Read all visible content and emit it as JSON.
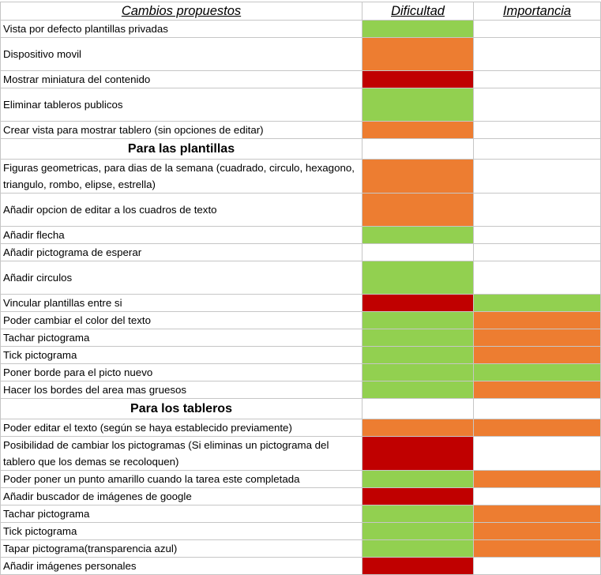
{
  "header": {
    "col1": "Cambios propuestos",
    "col2": "Dificultad",
    "col3": "Importancia"
  },
  "colors": {
    "green": "#92d050",
    "orange": "#ed7d31",
    "red": "#c00000",
    "white": "#ffffff"
  },
  "rows": [
    {
      "type": "item",
      "label": "Vista por defecto plantillas privadas",
      "difficulty": "green",
      "importance": "white",
      "h": 21
    },
    {
      "type": "item",
      "label": "Dispositivo movil",
      "difficulty": "orange",
      "importance": "white",
      "h": 42
    },
    {
      "type": "item",
      "label": "Mostrar miniatura del contenido",
      "difficulty": "red",
      "importance": "white",
      "h": 21
    },
    {
      "type": "item",
      "label": "Eliminar tableros publicos",
      "difficulty": "green",
      "importance": "white",
      "h": 42
    },
    {
      "type": "item",
      "label": "Crear vista para mostrar tablero (sin opciones de editar)",
      "difficulty": "orange",
      "importance": "white",
      "h": 21
    },
    {
      "type": "section",
      "label": "Para las plantillas",
      "h": 26
    },
    {
      "type": "item",
      "label": "Figuras geometricas, para dias de la semana (cuadrado, circulo, hexagono, triangulo, rombo, elipse, estrella)",
      "difficulty": "orange",
      "importance": "white",
      "h": 42
    },
    {
      "type": "item",
      "label": "Añadir opcion de editar a los cuadros de texto",
      "difficulty": "orange",
      "importance": "white",
      "h": 42
    },
    {
      "type": "item",
      "label": "Añadir flecha",
      "difficulty": "green",
      "importance": "white",
      "h": 21
    },
    {
      "type": "item",
      "label": "Añadir pictograma de esperar",
      "difficulty": "white",
      "importance": "white",
      "h": 21
    },
    {
      "type": "item",
      "label": "Añadir circulos",
      "difficulty": "green",
      "importance": "white",
      "h": 42
    },
    {
      "type": "item",
      "label": "Vincular plantillas entre si",
      "difficulty": "red",
      "importance": "green",
      "h": 21
    },
    {
      "type": "item",
      "label": "Poder cambiar el color del texto",
      "difficulty": "green",
      "importance": "orange",
      "h": 21
    },
    {
      "type": "item",
      "label": "Tachar pictograma",
      "difficulty": "green",
      "importance": "orange",
      "h": 21
    },
    {
      "type": "item",
      "label": "Tick pictograma",
      "difficulty": "green",
      "importance": "orange",
      "h": 21
    },
    {
      "type": "item",
      "label": "Poner borde para el picto nuevo",
      "difficulty": "green",
      "importance": "green",
      "h": 21
    },
    {
      "type": "item",
      "label": "Hacer los bordes del area mas gruesos",
      "difficulty": "green",
      "importance": "orange",
      "h": 21
    },
    {
      "type": "section",
      "label": "Para los tableros",
      "h": 26
    },
    {
      "type": "item",
      "label": "Poder editar el texto (según se haya establecido previamente)",
      "difficulty": "orange",
      "importance": "orange",
      "h": 21
    },
    {
      "type": "item",
      "label": "Posibilidad de cambiar los pictogramas (Si eliminas un pictograma del tablero que los demas se recoloquen)",
      "difficulty": "red",
      "importance": "white",
      "h": 42
    },
    {
      "type": "item",
      "label": "Poder poner un punto amarillo cuando la tarea este completada",
      "difficulty": "green",
      "importance": "orange",
      "h": 21
    },
    {
      "type": "item",
      "label": "Añadir buscador de imágenes de google",
      "difficulty": "red",
      "importance": "white",
      "h": 21
    },
    {
      "type": "item",
      "label": "Tachar pictograma",
      "difficulty": "green",
      "importance": "orange",
      "h": 21
    },
    {
      "type": "item",
      "label": "Tick pictograma",
      "difficulty": "green",
      "importance": "orange",
      "h": 21
    },
    {
      "type": "item",
      "label": "Tapar pictograma(transparencia azul)",
      "difficulty": "green",
      "importance": "orange",
      "h": 21
    },
    {
      "type": "item",
      "label": "Añadir imágenes personales",
      "difficulty": "red",
      "importance": "white",
      "h": 21
    }
  ]
}
